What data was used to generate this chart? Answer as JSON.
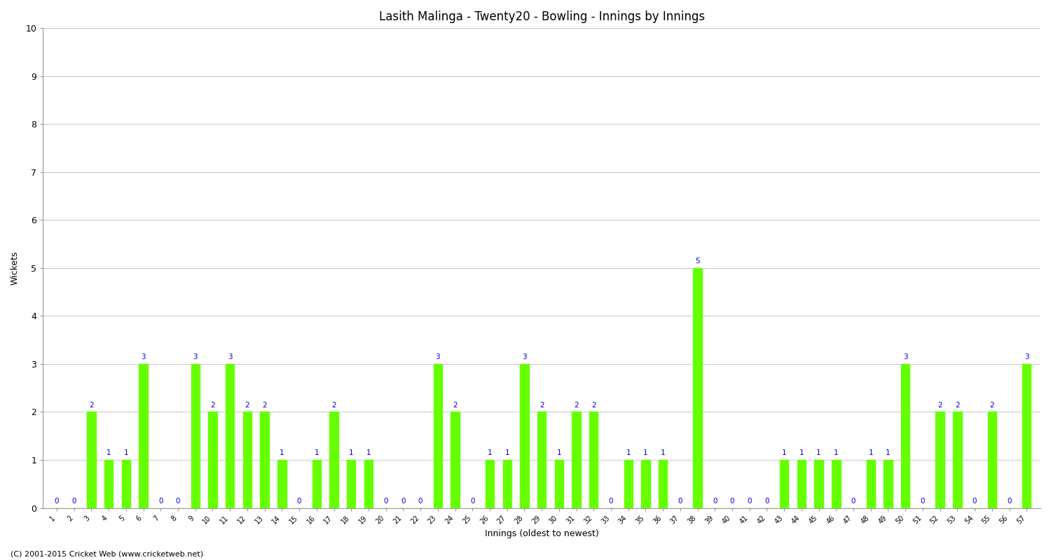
{
  "title": "Lasith Malinga - Twenty20 - Bowling - Innings by Innings",
  "xlabel": "Innings (oldest to newest)",
  "ylabel": "Wickets",
  "bar_color": "#66ff00",
  "label_color": "#0000cc",
  "background_color": "#ffffff",
  "grid_color": "#cccccc",
  "ylim": [
    0,
    10
  ],
  "yticks": [
    0,
    1,
    2,
    3,
    4,
    5,
    6,
    7,
    8,
    9,
    10
  ],
  "copyright": "(C) 2001-2015 Cricket Web (www.cricketweb.net)",
  "innings": [
    1,
    2,
    3,
    4,
    5,
    6,
    7,
    8,
    9,
    10,
    11,
    12,
    13,
    14,
    15,
    16,
    17,
    18,
    19,
    20,
    21,
    22,
    23,
    24,
    25,
    26,
    27,
    28,
    29,
    30,
    31,
    32,
    33,
    34,
    35,
    36,
    37,
    38,
    39,
    40,
    41,
    42,
    43,
    44,
    45,
    46,
    47,
    48,
    49,
    50,
    51,
    52,
    53,
    54,
    55,
    56,
    57
  ],
  "wickets": [
    0,
    0,
    2,
    1,
    1,
    3,
    0,
    0,
    3,
    2,
    3,
    2,
    2,
    1,
    0,
    1,
    2,
    1,
    1,
    0,
    0,
    0,
    3,
    2,
    0,
    1,
    1,
    3,
    2,
    1,
    2,
    2,
    0,
    1,
    1,
    1,
    0,
    5,
    0,
    0,
    0,
    0,
    1,
    1,
    1,
    1,
    0,
    1,
    1,
    3,
    0,
    2,
    2,
    0,
    2,
    0,
    3
  ]
}
